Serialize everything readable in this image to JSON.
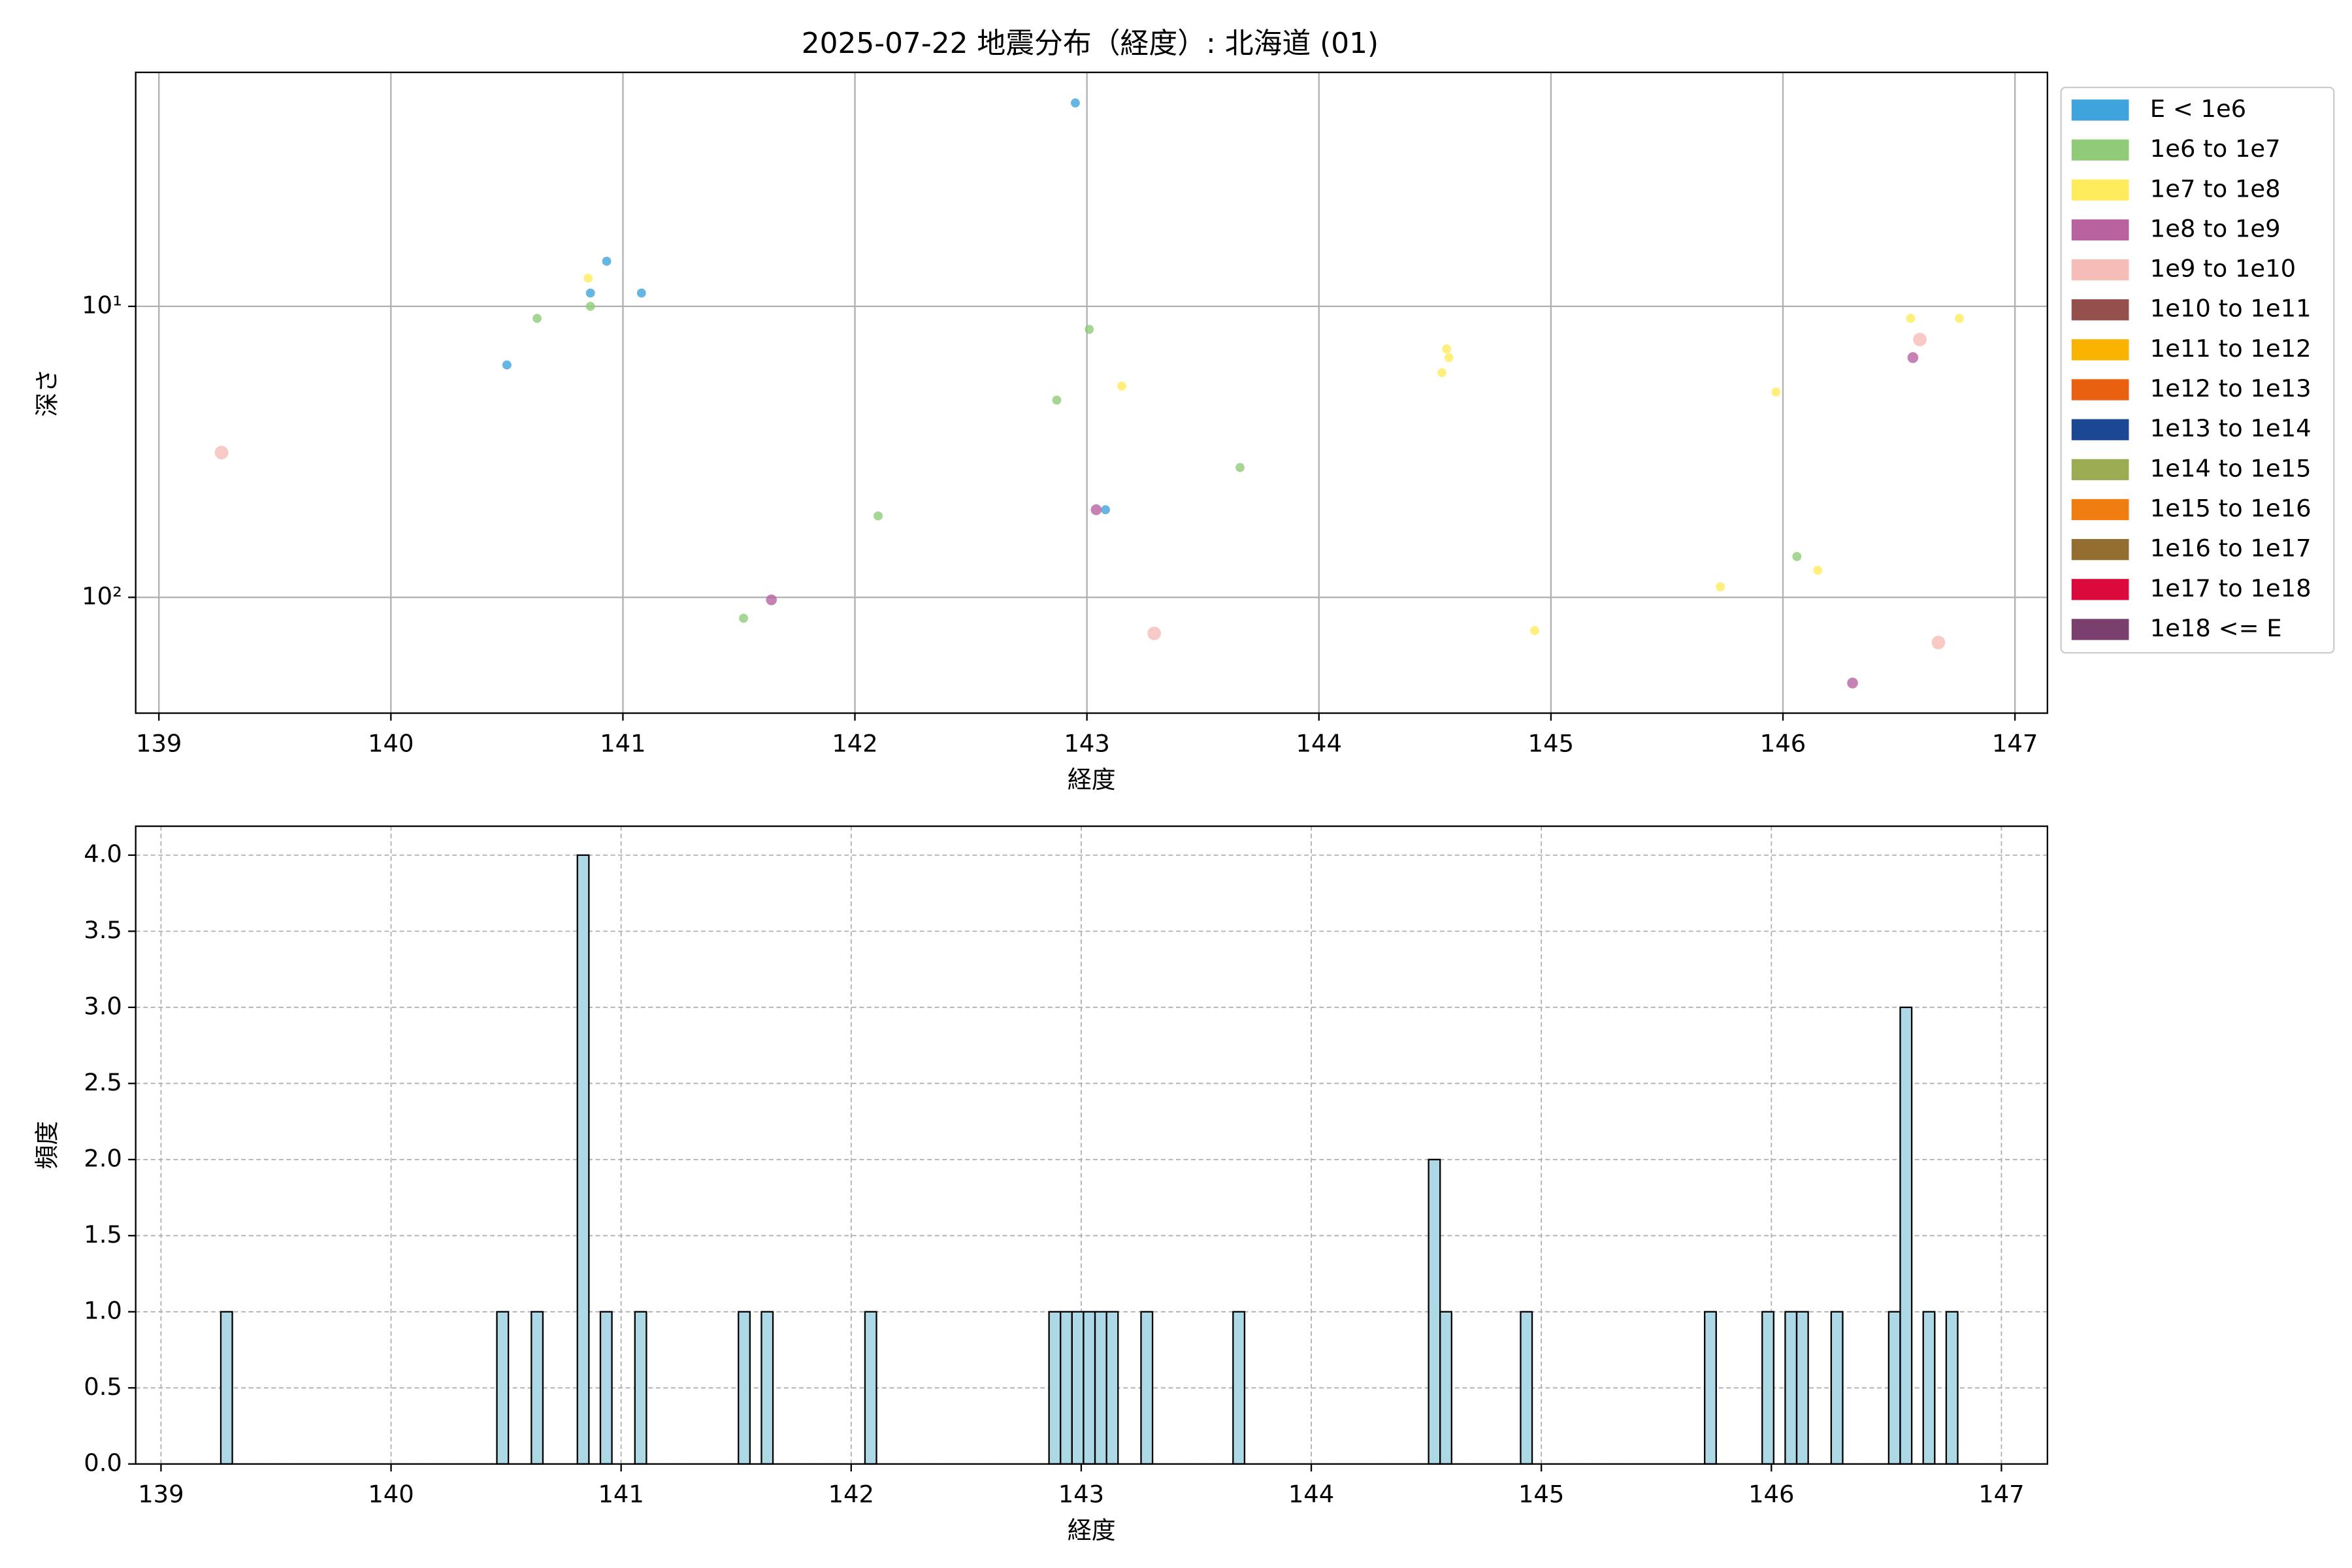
{
  "chart_data": [
    {
      "type": "scatter",
      "title": "2025-07-22 地震分布（経度）: 北海道 (01)",
      "x_label": "経度",
      "y_label": "深さ",
      "xlim": [
        138.9,
        147.14
      ],
      "xticks": [
        139,
        140,
        141,
        142,
        143,
        144,
        145,
        146,
        147
      ],
      "ylim": [
        1.57,
        250
      ],
      "log_y": true,
      "y_inverted": true,
      "yticks": [
        {
          "value": 10,
          "label": "10¹"
        },
        {
          "value": 100,
          "label": "10²"
        }
      ],
      "grid": true,
      "legend": "outside-right",
      "series": [
        {
          "name": "E < 1e6",
          "color": "#3fa4dc",
          "x": [
            142.95,
            140.93,
            140.86,
            141.08,
            140.5,
            143.08
          ],
          "values": [
            2.0,
            7.0,
            9.0,
            9.0,
            15.9,
            50
          ]
        },
        {
          "name": "1e6 to 1e7",
          "color": "#90cc78",
          "x": [
            140.63,
            140.86,
            143.01,
            142.87,
            143.66,
            142.1,
            141.52,
            146.06
          ],
          "values": [
            11,
            10,
            12,
            21,
            35.8,
            52.5,
            118,
            72.4
          ]
        },
        {
          "name": "1e7 to 1e8",
          "color": "#ffec5c",
          "x": [
            140.85,
            143.15,
            144.55,
            144.56,
            144.53,
            144.93,
            145.73,
            145.97,
            146.15,
            146.55,
            146.76
          ],
          "values": [
            8.0,
            18.8,
            14,
            15,
            16.9,
            130,
            92,
            19.7,
            80.7,
            11,
            11
          ]
        },
        {
          "name": "1e8 to 1e9",
          "color": "#b8639f",
          "x": [
            141.64,
            143.04,
            146.56,
            146.3
          ],
          "values": [
            102,
            50,
            15,
            197
          ]
        },
        {
          "name": "1e9 to 1e10",
          "color": "#f6bdb8",
          "x": [
            139.27,
            143.29,
            146.59,
            146.67
          ],
          "values": [
            31.8,
            133,
            13,
            143
          ]
        },
        {
          "name": "1e10 to 1e11",
          "color": "#954f4d",
          "x": [],
          "values": []
        },
        {
          "name": "1e11 to 1e12",
          "color": "#f8b400",
          "x": [],
          "values": []
        },
        {
          "name": "1e12 to 1e13",
          "color": "#ea6011",
          "x": [],
          "values": []
        },
        {
          "name": "1e13 to 1e14",
          "color": "#1b4793",
          "x": [],
          "values": []
        },
        {
          "name": "1e14 to 1e15",
          "color": "#9bac52",
          "x": [],
          "values": []
        },
        {
          "name": "1e15 to 1e16",
          "color": "#f07d0f",
          "x": [],
          "values": []
        },
        {
          "name": "1e16 to 1e17",
          "color": "#936e30",
          "x": [],
          "values": []
        },
        {
          "name": "1e17 to 1e18",
          "color": "#dc0a3c",
          "x": [],
          "values": []
        },
        {
          "name": "1e18 <= E",
          "color": "#7b3f6e",
          "x": [],
          "values": []
        }
      ]
    },
    {
      "type": "histogram",
      "x_label": "経度",
      "y_label": "頻度",
      "color": "#add8e6",
      "edgecolor": "#000000",
      "xlim": [
        138.89,
        147.2
      ],
      "xticks": [
        139,
        140,
        141,
        142,
        143,
        144,
        145,
        146,
        147
      ],
      "ylim": [
        0,
        4.19
      ],
      "yticks": [
        {
          "value": 0,
          "label": "0.0"
        },
        {
          "value": 0.5,
          "label": "0.5"
        },
        {
          "value": 1,
          "label": "1.0"
        },
        {
          "value": 1.5,
          "label": "1.5"
        },
        {
          "value": 2,
          "label": "2.0"
        },
        {
          "value": 2.5,
          "label": "2.5"
        },
        {
          "value": 3,
          "label": "3.0"
        },
        {
          "value": 3.5,
          "label": "3.5"
        },
        {
          "value": 4,
          "label": "4.0"
        }
      ],
      "grid": true,
      "grid_style": "dashed",
      "bins": [
        139.26,
        139.31,
        139.36,
        139.41,
        139.46,
        139.51,
        139.56,
        139.61,
        139.66,
        139.71,
        139.76,
        139.81,
        139.86,
        139.91,
        139.96,
        140.01,
        140.06,
        140.11,
        140.16,
        140.21,
        140.26,
        140.31,
        140.36,
        140.41,
        140.46,
        140.51,
        140.56,
        140.61,
        140.66,
        140.71,
        140.76,
        140.81,
        140.86,
        140.91,
        140.96,
        141.01,
        141.06,
        141.11,
        141.16,
        141.21,
        141.26,
        141.31,
        141.36,
        141.41,
        141.46,
        141.51,
        141.56,
        141.61,
        141.66,
        141.71,
        141.76,
        141.81,
        141.86,
        141.91,
        141.96,
        142.01,
        142.06,
        142.11,
        142.16,
        142.21,
        142.26,
        142.31,
        142.36,
        142.41,
        142.46,
        142.51,
        142.56,
        142.61,
        142.66,
        142.71,
        142.76,
        142.81,
        142.86,
        142.91,
        142.96,
        143.01,
        143.06,
        143.11,
        143.16,
        143.21,
        143.26,
        143.31,
        143.36,
        143.41,
        143.46,
        143.51,
        143.56,
        143.61,
        143.66,
        143.71,
        143.76,
        143.81,
        143.86,
        143.91,
        143.96,
        144.01,
        144.06,
        144.11,
        144.16,
        144.21,
        144.26,
        144.31,
        144.36,
        144.41,
        144.46,
        144.51,
        144.56,
        144.61,
        144.66,
        144.71,
        144.76,
        144.81,
        144.86,
        144.91,
        144.96,
        145.01,
        145.06,
        145.11,
        145.16,
        145.21,
        145.26,
        145.31,
        145.36,
        145.41,
        145.46,
        145.51,
        145.56,
        145.61,
        145.66,
        145.71,
        145.76,
        145.81,
        145.86,
        145.91,
        145.96,
        146.01,
        146.06,
        146.11,
        146.16,
        146.21,
        146.26,
        146.31,
        146.36,
        146.41,
        146.46,
        146.51,
        146.56,
        146.61,
        146.66,
        146.71,
        146.76,
        146.81
      ],
      "values": [
        1,
        0,
        0,
        0,
        0,
        0,
        0,
        0,
        0,
        0,
        0,
        0,
        0,
        0,
        0,
        0,
        0,
        0,
        0,
        0,
        0,
        0,
        0,
        0,
        1,
        0,
        0,
        1,
        0,
        0,
        0,
        4,
        0,
        1,
        0,
        0,
        1,
        0,
        0,
        0,
        0,
        0,
        0,
        0,
        0,
        1,
        0,
        1,
        0,
        0,
        0,
        0,
        0,
        0,
        0,
        0,
        1,
        0,
        0,
        0,
        0,
        0,
        0,
        0,
        0,
        0,
        0,
        0,
        0,
        0,
        0,
        0,
        1,
        1,
        1,
        1,
        1,
        1,
        0,
        0,
        1,
        0,
        0,
        0,
        0,
        0,
        0,
        0,
        1,
        0,
        0,
        0,
        0,
        0,
        0,
        0,
        0,
        0,
        0,
        0,
        0,
        0,
        0,
        0,
        0,
        2,
        1,
        0,
        0,
        0,
        0,
        0,
        0,
        1,
        0,
        0,
        0,
        0,
        0,
        0,
        0,
        0,
        0,
        0,
        0,
        0,
        0,
        0,
        0,
        1,
        0,
        0,
        0,
        0,
        1,
        0,
        1,
        1,
        0,
        0,
        1,
        0,
        0,
        0,
        0,
        1,
        3,
        0,
        1,
        0,
        1
      ]
    }
  ]
}
